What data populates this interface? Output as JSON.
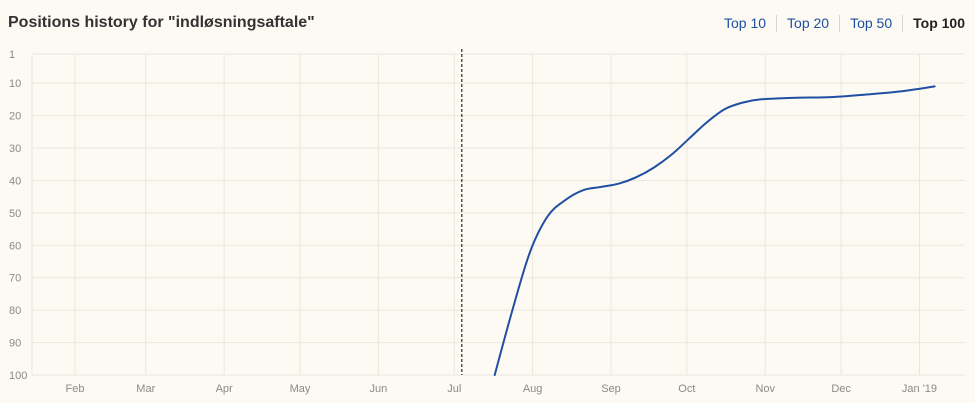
{
  "header": {
    "title": "Positions history for \"indløsningsaftale\""
  },
  "tabs": [
    {
      "label": "Top 10",
      "active": false
    },
    {
      "label": "Top 20",
      "active": false
    },
    {
      "label": "Top 50",
      "active": false
    },
    {
      "label": "Top 100",
      "active": true
    }
  ],
  "colors": {
    "line": "#1f4fa3",
    "grid": "#ebe7df",
    "background": "#fdfaf3",
    "marker": "#000000"
  },
  "chart_data": {
    "type": "line",
    "title": "Positions history for \"indløsningsaftale\"",
    "xlabel": "",
    "ylabel": "",
    "y_axis_inverted": true,
    "ylim": [
      1,
      100
    ],
    "y_ticks": [
      1,
      10,
      20,
      30,
      40,
      50,
      60,
      70,
      80,
      90,
      100
    ],
    "xlim": [
      "2018-01-15",
      "2019-01-19"
    ],
    "x_ticks": [
      {
        "label": "Feb",
        "date": "2018-02-01"
      },
      {
        "label": "Mar",
        "date": "2018-03-01"
      },
      {
        "label": "Apr",
        "date": "2018-04-01"
      },
      {
        "label": "May",
        "date": "2018-05-01"
      },
      {
        "label": "Jun",
        "date": "2018-06-01"
      },
      {
        "label": "Jul",
        "date": "2018-07-01"
      },
      {
        "label": "Aug",
        "date": "2018-08-01"
      },
      {
        "label": "Sep",
        "date": "2018-09-01"
      },
      {
        "label": "Oct",
        "date": "2018-10-01"
      },
      {
        "label": "Nov",
        "date": "2018-11-01"
      },
      {
        "label": "Dec",
        "date": "2018-12-01"
      },
      {
        "label": "Jan '19",
        "date": "2019-01-01"
      }
    ],
    "marker_date": "2018-07-04",
    "grid": true,
    "series": [
      {
        "name": "",
        "points": [
          {
            "x": "2018-07-17",
            "y": 100
          },
          {
            "x": "2018-07-24",
            "y": 80
          },
          {
            "x": "2018-07-31",
            "y": 62
          },
          {
            "x": "2018-08-07",
            "y": 51
          },
          {
            "x": "2018-08-14",
            "y": 46
          },
          {
            "x": "2018-08-21",
            "y": 43
          },
          {
            "x": "2018-08-28",
            "y": 42
          },
          {
            "x": "2018-09-04",
            "y": 41
          },
          {
            "x": "2018-09-11",
            "y": 39
          },
          {
            "x": "2018-09-18",
            "y": 36
          },
          {
            "x": "2018-09-25",
            "y": 32
          },
          {
            "x": "2018-10-02",
            "y": 27
          },
          {
            "x": "2018-10-09",
            "y": 22
          },
          {
            "x": "2018-10-16",
            "y": 18
          },
          {
            "x": "2018-10-23",
            "y": 16
          },
          {
            "x": "2018-10-30",
            "y": 15
          },
          {
            "x": "2018-11-13",
            "y": 14.5
          },
          {
            "x": "2018-11-27",
            "y": 14.3
          },
          {
            "x": "2018-12-11",
            "y": 13.5
          },
          {
            "x": "2018-12-25",
            "y": 12.5
          },
          {
            "x": "2019-01-07",
            "y": 11
          }
        ]
      }
    ]
  }
}
